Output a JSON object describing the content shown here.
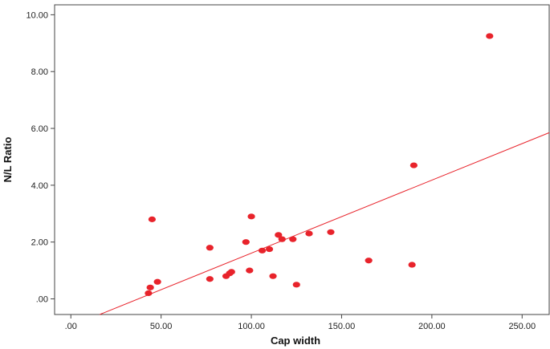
{
  "chart_data": {
    "type": "scatter",
    "title": "",
    "xlabel": "Cap width",
    "ylabel": "N/L Ratio",
    "xlim": [
      -9,
      265
    ],
    "ylim": [
      -0.55,
      10.35
    ],
    "x_ticks": [
      0,
      50,
      100,
      150,
      200,
      250
    ],
    "x_tick_labels": [
      ".00",
      "50.00",
      "100.00",
      "150.00",
      "200.00",
      "250.00"
    ],
    "y_ticks": [
      0,
      2,
      4,
      6,
      8,
      10
    ],
    "y_tick_labels": [
      ".00",
      "2.00",
      "4.00",
      "6.00",
      "8.00",
      "10.00"
    ],
    "grid": false,
    "legend": "none",
    "point_color": "#e8232b",
    "line_color": "#e8232b",
    "series": [
      {
        "points": [
          {
            "x": 43,
            "y": 0.2
          },
          {
            "x": 44,
            "y": 0.4
          },
          {
            "x": 45,
            "y": 2.8
          },
          {
            "x": 48,
            "y": 0.6
          },
          {
            "x": 77,
            "y": 0.7
          },
          {
            "x": 77,
            "y": 1.8
          },
          {
            "x": 86,
            "y": 0.8
          },
          {
            "x": 88,
            "y": 0.9
          },
          {
            "x": 89,
            "y": 0.95
          },
          {
            "x": 97,
            "y": 2.0
          },
          {
            "x": 99,
            "y": 1.0
          },
          {
            "x": 100,
            "y": 2.9
          },
          {
            "x": 106,
            "y": 1.7
          },
          {
            "x": 110,
            "y": 1.75
          },
          {
            "x": 112,
            "y": 0.8
          },
          {
            "x": 115,
            "y": 2.25
          },
          {
            "x": 117,
            "y": 2.1
          },
          {
            "x": 123,
            "y": 2.1
          },
          {
            "x": 125,
            "y": 0.5
          },
          {
            "x": 132,
            "y": 2.3
          },
          {
            "x": 144,
            "y": 2.35
          },
          {
            "x": 165,
            "y": 1.35
          },
          {
            "x": 189,
            "y": 1.2
          },
          {
            "x": 190,
            "y": 4.7
          },
          {
            "x": 232,
            "y": 9.25
          }
        ]
      }
    ],
    "fit_line": {
      "x": [
        16,
        265
      ],
      "y": [
        -0.55,
        5.85
      ]
    }
  }
}
